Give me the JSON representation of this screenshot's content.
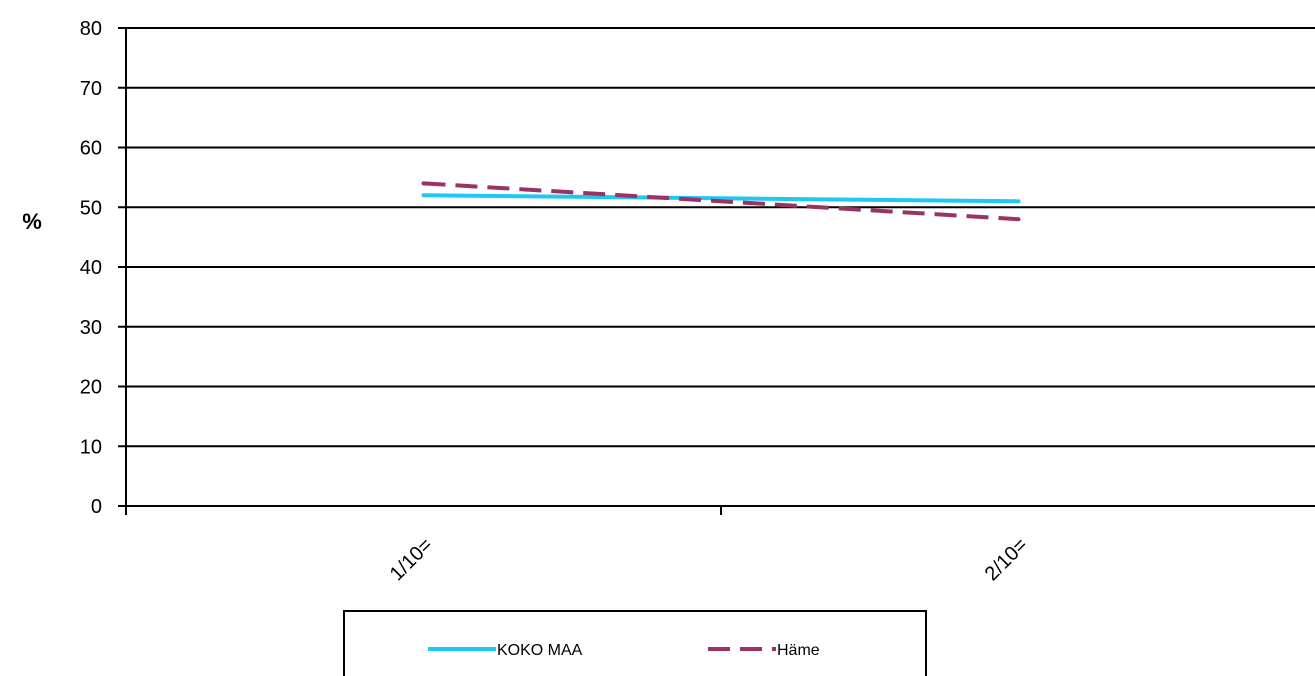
{
  "chart_data": {
    "type": "line",
    "title": "",
    "xlabel": "",
    "ylabel": "%",
    "categories": [
      "1/10=",
      "2/10="
    ],
    "ylim": [
      0,
      80
    ],
    "yticks": [
      0,
      10,
      20,
      30,
      40,
      50,
      60,
      70,
      80
    ],
    "grid": true,
    "legend_position": "bottom",
    "series": [
      {
        "name": "KOKO MAA",
        "values": [
          52,
          51
        ],
        "color": "#1ec8f0",
        "style": "solid"
      },
      {
        "name": "Häme",
        "values": [
          54,
          48
        ],
        "color": "#993366",
        "style": "dashed"
      }
    ]
  }
}
